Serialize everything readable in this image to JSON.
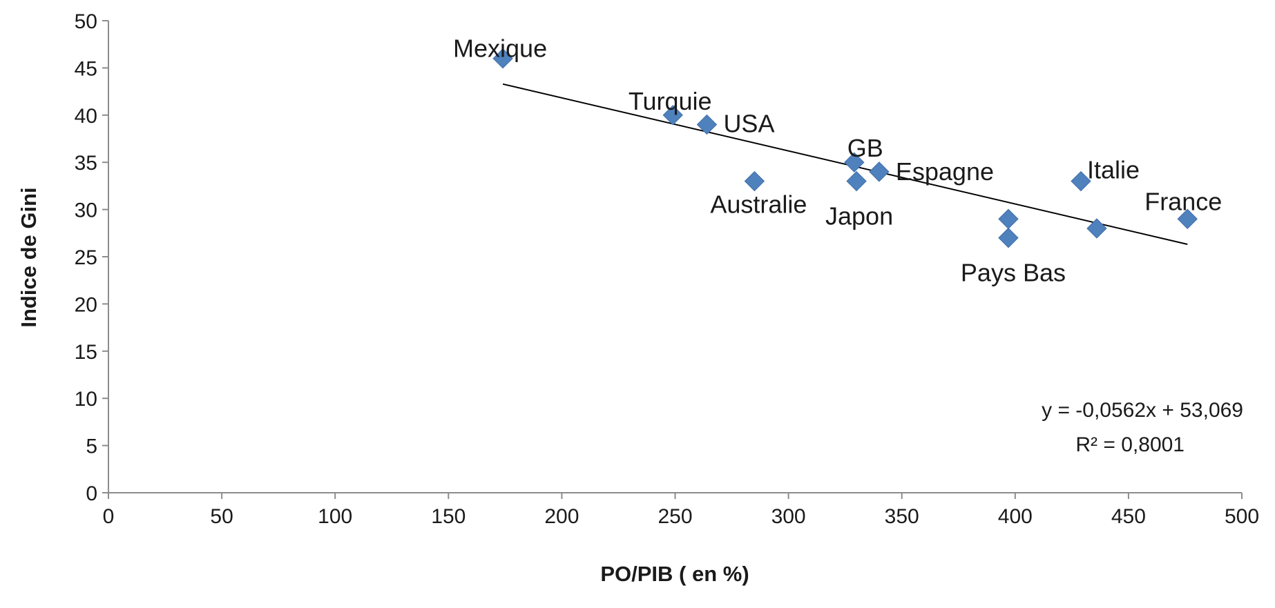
{
  "chart_data": {
    "type": "scatter",
    "title": "",
    "xlabel": "PO/PIB  ( en %)",
    "ylabel": "Indice de Gini",
    "xlim": [
      0,
      500
    ],
    "ylim": [
      0,
      50
    ],
    "x_ticks": [
      "0",
      "50",
      "100",
      "150",
      "200",
      "250",
      "300",
      "350",
      "400",
      "450",
      "500"
    ],
    "y_ticks": [
      "0",
      "5",
      "10",
      "15",
      "20",
      "25",
      "30",
      "35",
      "40",
      "45",
      "50"
    ],
    "grid": false,
    "legend": "none",
    "marker": "diamond",
    "marker_color": "#4F81BD",
    "points": [
      {
        "label": "Mexique",
        "x": 174,
        "y": 46
      },
      {
        "label": "Turquie",
        "x": 249,
        "y": 40
      },
      {
        "label": "USA",
        "x": 264,
        "y": 39
      },
      {
        "label": "Australie",
        "x": 285,
        "y": 33
      },
      {
        "label": "GB",
        "x": 329,
        "y": 35
      },
      {
        "label": "Japon",
        "x": 330,
        "y": 33
      },
      {
        "label": "Espagne",
        "x": 340,
        "y": 34
      },
      {
        "label": "",
        "x": 397,
        "y": 29
      },
      {
        "label": "Pays Bas",
        "x": 397,
        "y": 27
      },
      {
        "label": "Italie",
        "x": 429,
        "y": 33
      },
      {
        "label": "",
        "x": 436,
        "y": 28
      },
      {
        "label": "France",
        "x": 476,
        "y": 29
      }
    ],
    "trendline": {
      "slope": -0.0562,
      "intercept": 53.069,
      "x_range": [
        174,
        476
      ],
      "color": "#000000",
      "equation": "y = -0,0562x + 53,069",
      "r_squared": "R² = 0,8001"
    }
  }
}
